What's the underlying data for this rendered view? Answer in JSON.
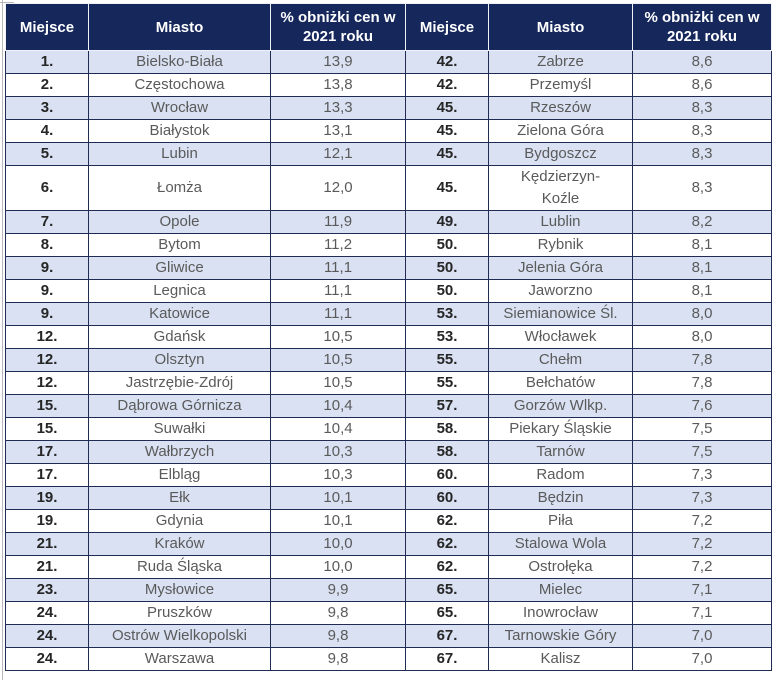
{
  "colors": {
    "header_bg": "#16275b",
    "header_text": "#ffffff",
    "row_alt_bg": "#d9e1f2",
    "row_bg": "#ffffff",
    "grid_border": "#202c54",
    "rank_text": "#262626",
    "body_text": "#5a5a5a"
  },
  "chart_data": {
    "type": "table",
    "title": "",
    "headers": {
      "rank": "Miejsce",
      "city": "Miasto",
      "pct": "% obniżki cen w 2021 roku"
    },
    "columns": [
      "Miejsce",
      "Miasto",
      "% obniżki cen w 2021 roku",
      "Miejsce",
      "Miasto",
      "% obniżki cen w 2021 roku"
    ],
    "left_rows": [
      {
        "rank": "1.",
        "city": "Bielsko-Biała",
        "value": "13,9"
      },
      {
        "rank": "2.",
        "city": "Częstochowa",
        "value": "13,8"
      },
      {
        "rank": "3.",
        "city": "Wrocław",
        "value": "13,3"
      },
      {
        "rank": "4.",
        "city": "Białystok",
        "value": "13,1"
      },
      {
        "rank": "5.",
        "city": "Lubin",
        "value": "12,1"
      },
      {
        "rank": "6.",
        "city": "Łomża",
        "value": "12,0"
      },
      {
        "rank": "7.",
        "city": "Opole",
        "value": "11,9"
      },
      {
        "rank": "8.",
        "city": "Bytom",
        "value": "11,2"
      },
      {
        "rank": "9.",
        "city": "Gliwice",
        "value": "11,1"
      },
      {
        "rank": "9.",
        "city": "Legnica",
        "value": "11,1"
      },
      {
        "rank": "9.",
        "city": "Katowice",
        "value": "11,1"
      },
      {
        "rank": "12.",
        "city": "Gdańsk",
        "value": "10,5"
      },
      {
        "rank": "12.",
        "city": "Olsztyn",
        "value": "10,5"
      },
      {
        "rank": "12.",
        "city": "Jastrzębie-Zdrój",
        "value": "10,5"
      },
      {
        "rank": "15.",
        "city": "Dąbrowa Górnicza",
        "value": "10,4"
      },
      {
        "rank": "15.",
        "city": "Suwałki",
        "value": "10,4"
      },
      {
        "rank": "17.",
        "city": "Wałbrzych",
        "value": "10,3"
      },
      {
        "rank": "17.",
        "city": "Elbląg",
        "value": "10,3"
      },
      {
        "rank": "19.",
        "city": "Ełk",
        "value": "10,1"
      },
      {
        "rank": "19.",
        "city": "Gdynia",
        "value": "10,1"
      },
      {
        "rank": "21.",
        "city": "Kraków",
        "value": "10,0"
      },
      {
        "rank": "21.",
        "city": "Ruda Śląska",
        "value": "10,0"
      },
      {
        "rank": "23.",
        "city": "Mysłowice",
        "value": "9,9"
      },
      {
        "rank": "24.",
        "city": "Pruszków",
        "value": "9,8"
      },
      {
        "rank": "24.",
        "city": "Ostrów Wielkopolski",
        "value": "9,8"
      },
      {
        "rank": "24.",
        "city": "Warszawa",
        "value": "9,8"
      }
    ],
    "right_rows": [
      {
        "rank": "42.",
        "city": "Zabrze",
        "value": "8,6"
      },
      {
        "rank": "42.",
        "city": "Przemyśl",
        "value": "8,6"
      },
      {
        "rank": "45.",
        "city": "Rzeszów",
        "value": "8,3"
      },
      {
        "rank": "45.",
        "city": "Zielona Góra",
        "value": "8,3"
      },
      {
        "rank": "45.",
        "city": "Bydgoszcz",
        "value": "8,3"
      },
      {
        "rank": "45.",
        "city": "Kędzierzyn-\nKoźle",
        "value": "8,3"
      },
      {
        "rank": "49.",
        "city": "Lublin",
        "value": "8,2"
      },
      {
        "rank": "50.",
        "city": "Rybnik",
        "value": "8,1"
      },
      {
        "rank": "50.",
        "city": "Jelenia Góra",
        "value": "8,1"
      },
      {
        "rank": "50.",
        "city": "Jaworzno",
        "value": "8,1"
      },
      {
        "rank": "53.",
        "city": "Siemianowice Śl.",
        "value": "8,0"
      },
      {
        "rank": "53.",
        "city": "Włocławek",
        "value": "8,0"
      },
      {
        "rank": "55.",
        "city": "Chełm",
        "value": "7,8"
      },
      {
        "rank": "55.",
        "city": "Bełchatów",
        "value": "7,8"
      },
      {
        "rank": "57.",
        "city": "Gorzów Wlkp.",
        "value": "7,6"
      },
      {
        "rank": "58.",
        "city": "Piekary Śląskie",
        "value": "7,5"
      },
      {
        "rank": "58.",
        "city": "Tarnów",
        "value": "7,5"
      },
      {
        "rank": "60.",
        "city": "Radom",
        "value": "7,3"
      },
      {
        "rank": "60.",
        "city": "Będzin",
        "value": "7,3"
      },
      {
        "rank": "62.",
        "city": "Piła",
        "value": "7,2"
      },
      {
        "rank": "62.",
        "city": "Stalowa Wola",
        "value": "7,2"
      },
      {
        "rank": "62.",
        "city": "Ostrołęka",
        "value": "7,2"
      },
      {
        "rank": "65.",
        "city": "Mielec",
        "value": "7,1"
      },
      {
        "rank": "65.",
        "city": "Inowrocław",
        "value": "7,1"
      },
      {
        "rank": "67.",
        "city": "Tarnowskie Góry",
        "value": "7,0"
      },
      {
        "rank": "67.",
        "city": "Kalisz",
        "value": "7,0"
      }
    ]
  }
}
